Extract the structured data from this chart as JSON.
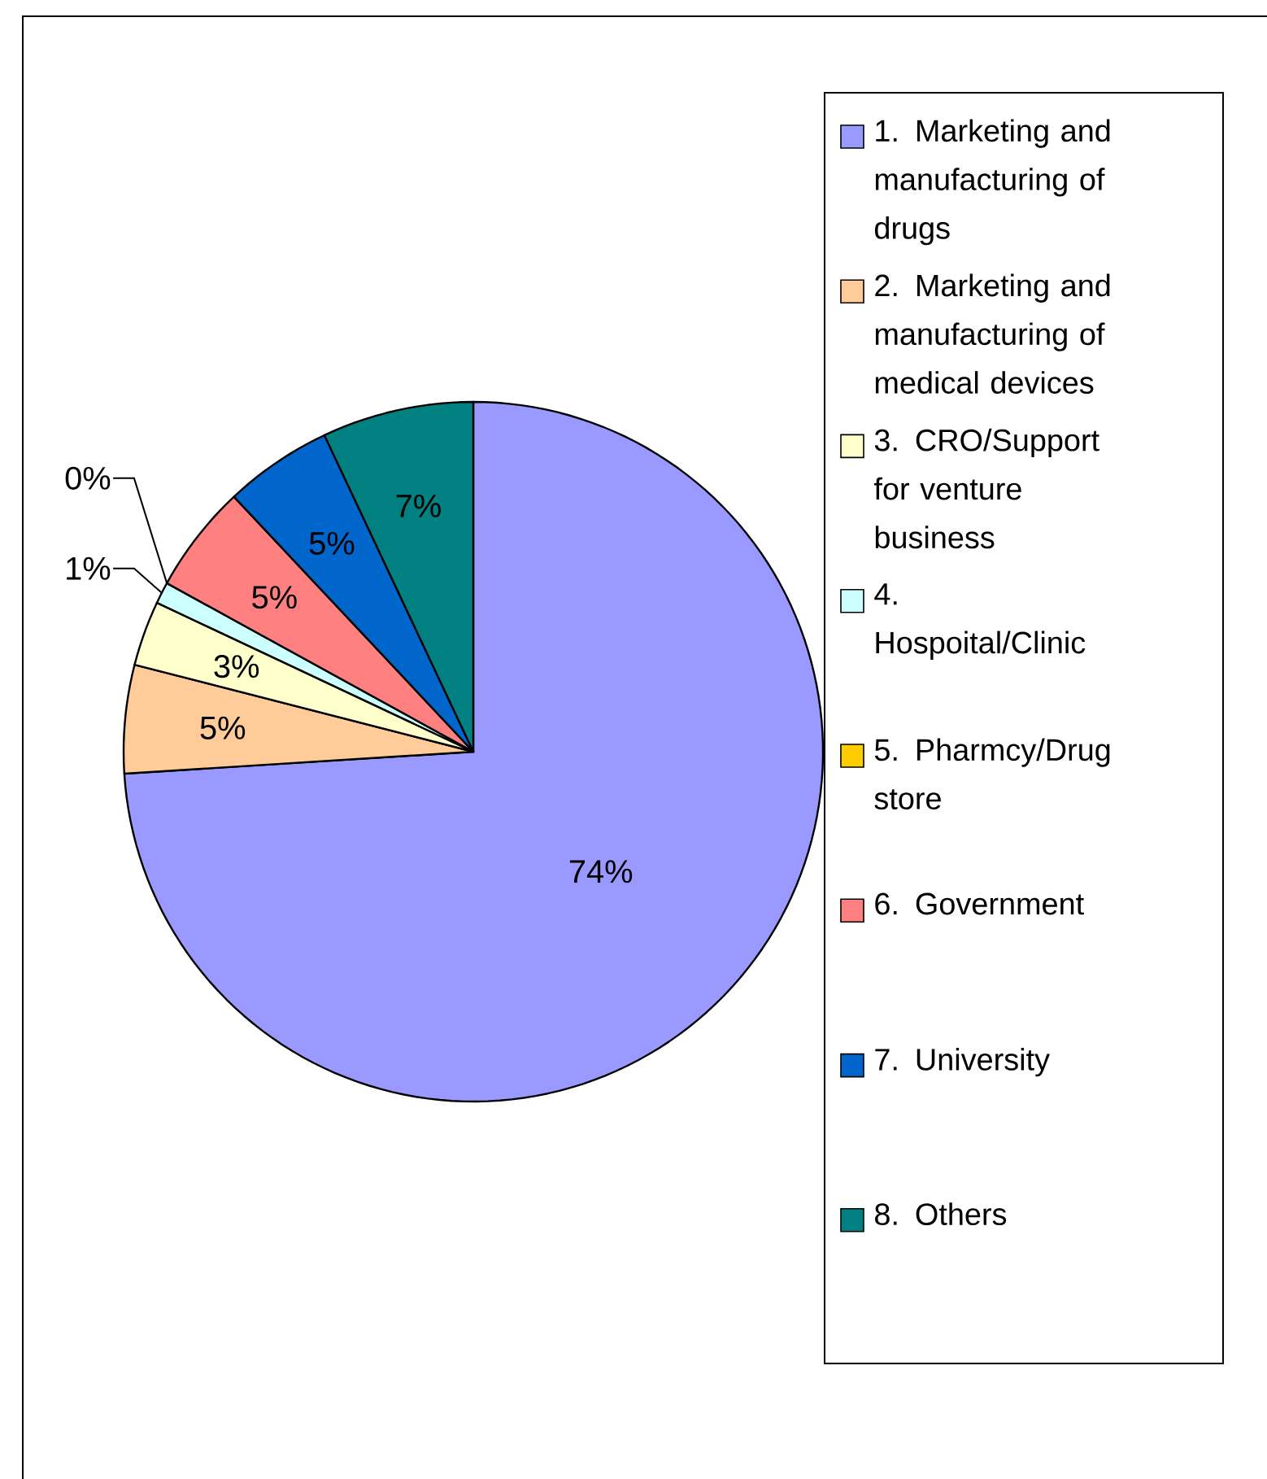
{
  "chart_data": {
    "type": "pie",
    "categories": [
      "1. Marketing and manufacturing  of drugs",
      "2. Marketing and manufacturing of medical devices",
      "3. CRO/Support for venture business",
      "4. Hospoital/Clinic",
      "5. Pharmcy/Drug store",
      "6. Government",
      "7. University",
      "8. Others"
    ],
    "values": [
      74,
      5,
      3,
      1,
      0,
      5,
      5,
      7
    ],
    "colors": [
      "#9999ff",
      "#ffcc99",
      "#ffffcc",
      "#ccffff",
      "#ffcc00",
      "#ff8080",
      "#0066cc",
      "#008080"
    ],
    "value_labels": [
      "74%",
      "5%",
      "3%",
      "1%",
      "0%",
      "5%",
      "5%",
      "7%"
    ],
    "legend": "right"
  }
}
